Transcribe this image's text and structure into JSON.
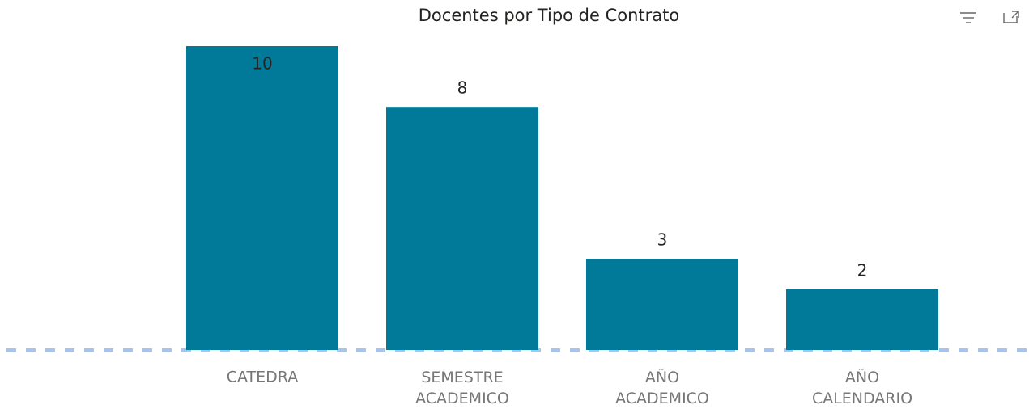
{
  "chart_data": {
    "type": "bar",
    "title": "Docentes por Tipo de Contrato",
    "categories": [
      "CATEDRA",
      "SEMESTRE ACADEMICO",
      "AÑO ACADEMICO",
      "AÑO CALENDARIO"
    ],
    "values": [
      10,
      8,
      3,
      2
    ],
    "color": "#007a98"
  }
}
